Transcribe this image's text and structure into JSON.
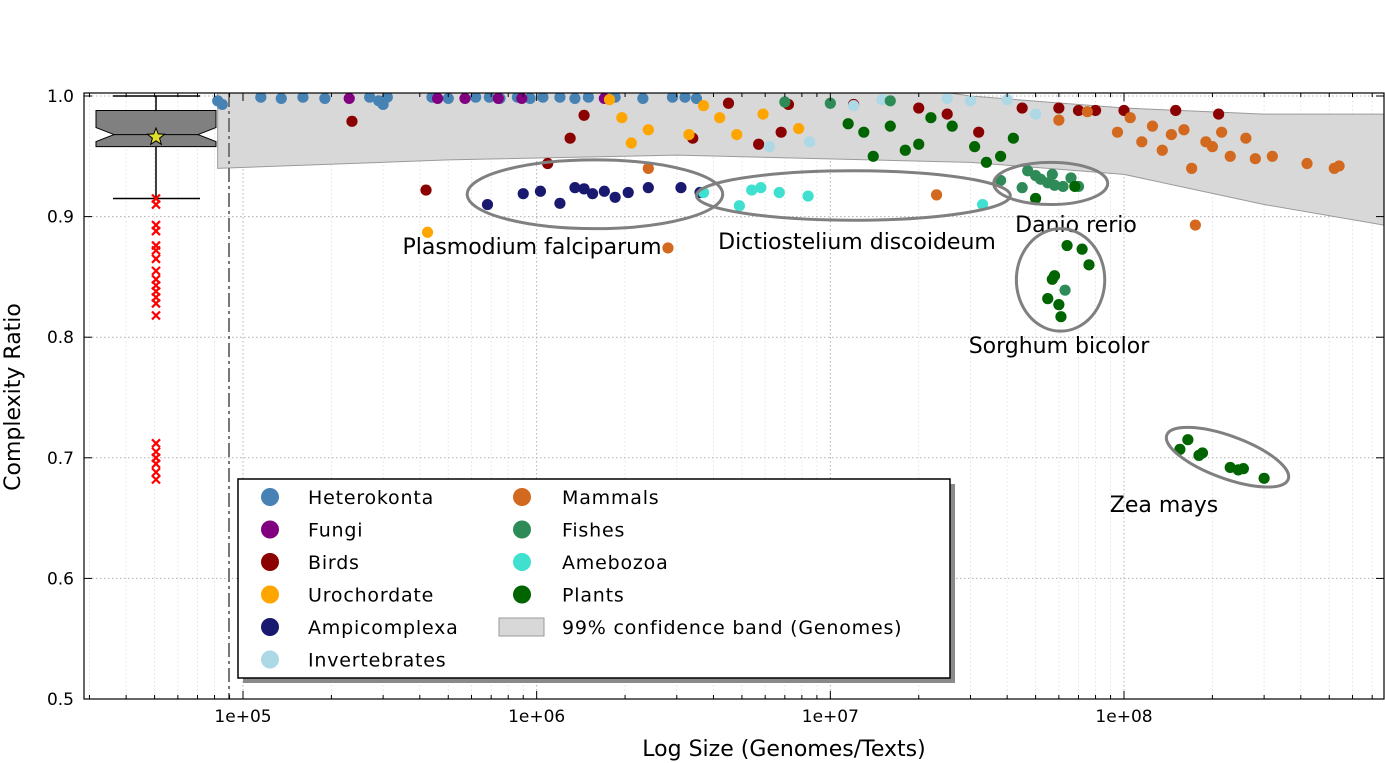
{
  "chart_data": {
    "type": "scatter",
    "xscale": "log",
    "xlabel": "Log Size (Genomes/Texts)",
    "ylabel": "Complexity Ratio",
    "xlim": [
      20000,
      1000000000
    ],
    "ylim": [
      0.5,
      1.005
    ],
    "grid": true,
    "x_ticks": [
      {
        "value": 100000,
        "label": "1e+05"
      },
      {
        "value": 1000000,
        "label": "1e+06"
      },
      {
        "value": 10000000,
        "label": "1e+07"
      },
      {
        "value": 100000000,
        "label": "1e+08"
      }
    ],
    "y_ticks": [
      {
        "value": 0.5,
        "label": "0.5"
      },
      {
        "value": 0.6,
        "label": "0.6"
      },
      {
        "value": 0.7,
        "label": "0.7"
      },
      {
        "value": 0.8,
        "label": "0.8"
      },
      {
        "value": 0.9,
        "label": "0.9"
      },
      {
        "value": 1.0,
        "label": "1.0"
      }
    ],
    "legend_position": "bottom-left",
    "confidence_band": {
      "name": "99% confidence band (Genomes)",
      "color": "#d8d8d8",
      "x": [
        82000,
        500000,
        3000000,
        30000000,
        100000000,
        300000000,
        900000000
      ],
      "upper": [
        1.08,
        1.05,
        1.035,
        1.0,
        0.99,
        0.985,
        0.985
      ],
      "lower": [
        0.94,
        0.947,
        0.951,
        0.945,
        0.935,
        0.91,
        0.89
      ]
    },
    "boxplot": {
      "whisker_low": 0.915,
      "q1": 0.958,
      "median": 0.968,
      "q3": 0.988,
      "whisker_high": 1.0,
      "mean": 0.966,
      "mean_color": "#dede30",
      "box_color": "#808080",
      "outlier_color": "#ff0000",
      "outliers": [
        0.915,
        0.91,
        0.893,
        0.888,
        0.876,
        0.872,
        0.865,
        0.855,
        0.848,
        0.843,
        0.838,
        0.833,
        0.828,
        0.818,
        0.712,
        0.705,
        0.7,
        0.695,
        0.688,
        0.682
      ]
    },
    "series": [
      {
        "name": "Heterokonta",
        "color": "#4682b4",
        "points": [
          [
            82000,
            0.996
          ],
          [
            85000,
            0.993
          ],
          [
            115000,
            0.999
          ],
          [
            135000,
            0.998
          ],
          [
            160000,
            0.999
          ],
          [
            190000,
            0.998
          ],
          [
            270000,
            0.999
          ],
          [
            290000,
            0.996
          ],
          [
            300000,
            0.993
          ],
          [
            310000,
            0.999
          ],
          [
            440000,
            0.999
          ],
          [
            500000,
            0.998
          ],
          [
            620000,
            0.999
          ],
          [
            690000,
            0.999
          ],
          [
            750000,
            0.998
          ],
          [
            860000,
            0.999
          ],
          [
            950000,
            0.998
          ],
          [
            1050000,
            0.999
          ],
          [
            1200000,
            0.999
          ],
          [
            1350000,
            0.998
          ],
          [
            1500000,
            0.999
          ],
          [
            1850000,
            0.999
          ],
          [
            2300000,
            0.998
          ],
          [
            2900000,
            0.999
          ],
          [
            3200000,
            0.999
          ],
          [
            3500000,
            0.998
          ]
        ]
      },
      {
        "name": "Fungi",
        "color": "#800080",
        "points": [
          [
            230000,
            0.998
          ],
          [
            460000,
            0.998
          ],
          [
            570000,
            0.998
          ],
          [
            740000,
            0.998
          ],
          [
            890000,
            0.998
          ],
          [
            1700000,
            0.998
          ]
        ]
      },
      {
        "name": "Birds",
        "color": "#8b0000",
        "points": [
          [
            235000,
            0.979
          ],
          [
            420000,
            0.922
          ],
          [
            1090000,
            0.944
          ],
          [
            1300000,
            0.965
          ],
          [
            1450000,
            0.984
          ],
          [
            3400000,
            0.965
          ],
          [
            4500000,
            0.994
          ],
          [
            5700000,
            0.96
          ],
          [
            6800000,
            0.97
          ],
          [
            7200000,
            0.993
          ],
          [
            12000000,
            0.993
          ],
          [
            20000000,
            0.99
          ],
          [
            25000000,
            0.985
          ],
          [
            32000000,
            0.97
          ],
          [
            45000000,
            0.99
          ],
          [
            60000000,
            0.99
          ],
          [
            70000000,
            0.988
          ],
          [
            80000000,
            0.988
          ],
          [
            100000000,
            0.988
          ],
          [
            150000000,
            0.988
          ],
          [
            210000000,
            0.985
          ]
        ]
      },
      {
        "name": "Urochordate",
        "color": "#ffa500",
        "points": [
          [
            425000,
            0.887
          ],
          [
            1770000,
            0.997
          ],
          [
            1950000,
            0.982
          ],
          [
            2100000,
            0.961
          ],
          [
            2400000,
            0.972
          ],
          [
            3300000,
            0.968
          ],
          [
            3700000,
            0.992
          ],
          [
            4200000,
            0.982
          ],
          [
            4800000,
            0.968
          ],
          [
            5900000,
            0.985
          ],
          [
            7800000,
            0.973
          ]
        ]
      },
      {
        "name": "Ampicomplexa",
        "color": "#191970",
        "points": [
          [
            680000,
            0.91
          ],
          [
            900000,
            0.919
          ],
          [
            1030000,
            0.921
          ],
          [
            1200000,
            0.911
          ],
          [
            1350000,
            0.924
          ],
          [
            1450000,
            0.923
          ],
          [
            1550000,
            0.919
          ],
          [
            1700000,
            0.921
          ],
          [
            1850000,
            0.916
          ],
          [
            2050000,
            0.92
          ],
          [
            2400000,
            0.924
          ],
          [
            3100000,
            0.924
          ],
          [
            3600000,
            0.92
          ]
        ]
      },
      {
        "name": "Invertebrates",
        "color": "#add8e6",
        "points": [
          [
            6200000,
            0.958
          ],
          [
            8500000,
            0.962
          ],
          [
            12000000,
            0.992
          ],
          [
            15000000,
            0.997
          ],
          [
            25000000,
            0.998
          ],
          [
            30000000,
            0.996
          ],
          [
            40000000,
            0.997
          ],
          [
            50000000,
            0.985
          ]
        ]
      },
      {
        "name": "Mammals",
        "color": "#d2691e",
        "points": [
          [
            2400000,
            0.94
          ],
          [
            2800000,
            0.874
          ],
          [
            23000000,
            0.918
          ],
          [
            60000000,
            0.98
          ],
          [
            75000000,
            0.987
          ],
          [
            95000000,
            0.97
          ],
          [
            105000000,
            0.982
          ],
          [
            115000000,
            0.962
          ],
          [
            125000000,
            0.975
          ],
          [
            135000000,
            0.955
          ],
          [
            145000000,
            0.968
          ],
          [
            160000000,
            0.972
          ],
          [
            170000000,
            0.94
          ],
          [
            175000000,
            0.893
          ],
          [
            190000000,
            0.962
          ],
          [
            200000000,
            0.958
          ],
          [
            215000000,
            0.97
          ],
          [
            230000000,
            0.95
          ],
          [
            260000000,
            0.965
          ],
          [
            280000000,
            0.948
          ],
          [
            320000000,
            0.95
          ],
          [
            420000000,
            0.944
          ],
          [
            520000000,
            0.94
          ],
          [
            540000000,
            0.942
          ],
          [
            850000000,
            0.943
          ]
        ]
      },
      {
        "name": "Fishes",
        "color": "#2e8b57",
        "points": [
          [
            7000000,
            0.995
          ],
          [
            10000000,
            0.994
          ],
          [
            16000000,
            0.996
          ],
          [
            38000000,
            0.93
          ],
          [
            45000000,
            0.924
          ],
          [
            47000000,
            0.938
          ],
          [
            50000000,
            0.934
          ],
          [
            52000000,
            0.931
          ],
          [
            55000000,
            0.928
          ],
          [
            57000000,
            0.935
          ],
          [
            58000000,
            0.926
          ],
          [
            62000000,
            0.925
          ],
          [
            66000000,
            0.932
          ],
          [
            70000000,
            0.925
          ],
          [
            63000000,
            0.839
          ]
        ]
      },
      {
        "name": "Amebozoa",
        "color": "#40e0d0",
        "points": [
          [
            3700000,
            0.92
          ],
          [
            4900000,
            0.909
          ],
          [
            5400000,
            0.922
          ],
          [
            5800000,
            0.924
          ],
          [
            6700000,
            0.92
          ],
          [
            8400000,
            0.917
          ],
          [
            33000000,
            0.91
          ]
        ]
      },
      {
        "name": "Plants",
        "color": "#006400",
        "points": [
          [
            11500000,
            0.977
          ],
          [
            13000000,
            0.97
          ],
          [
            14000000,
            0.95
          ],
          [
            16000000,
            0.975
          ],
          [
            18000000,
            0.955
          ],
          [
            20000000,
            0.96
          ],
          [
            22000000,
            0.982
          ],
          [
            26000000,
            0.975
          ],
          [
            31000000,
            0.958
          ],
          [
            34000000,
            0.945
          ],
          [
            38000000,
            0.95
          ],
          [
            42000000,
            0.965
          ],
          [
            50000000,
            0.915
          ],
          [
            55000000,
            0.832
          ],
          [
            57000000,
            0.848
          ],
          [
            58000000,
            0.851
          ],
          [
            60000000,
            0.827
          ],
          [
            61000000,
            0.817
          ],
          [
            64000000,
            0.876
          ],
          [
            68000000,
            0.925
          ],
          [
            72000000,
            0.873
          ],
          [
            76000000,
            0.86
          ],
          [
            155000000,
            0.707
          ],
          [
            165000000,
            0.715
          ],
          [
            180000000,
            0.702
          ],
          [
            185000000,
            0.704
          ],
          [
            230000000,
            0.692
          ],
          [
            245000000,
            0.69
          ],
          [
            255000000,
            0.691
          ],
          [
            300000000,
            0.683
          ]
        ]
      }
    ],
    "annotations": [
      {
        "text": "Plasmodium falciparum",
        "ellipse": {
          "x_range": [
            580000,
            4300000
          ],
          "y_range": [
            0.89,
            0.947
          ]
        }
      },
      {
        "text": "Dictiostelium discoideum",
        "ellipse": {
          "x_range": [
            3500000,
            41000000
          ],
          "y_range": [
            0.897,
            0.938
          ]
        }
      },
      {
        "text": "Danio rerio",
        "ellipse": {
          "x_range": [
            36000000,
            88000000
          ],
          "y_range": [
            0.91,
            0.945
          ]
        }
      },
      {
        "text": "Sorghum bicolor",
        "ellipse": {
          "x_range": [
            43000000,
            86000000
          ],
          "y_range": [
            0.805,
            0.89
          ]
        }
      },
      {
        "text": "Zea mays",
        "ellipse": {
          "x_range": [
            137000000,
            370000000
          ],
          "y_range": [
            0.672,
            0.729
          ]
        }
      }
    ]
  }
}
